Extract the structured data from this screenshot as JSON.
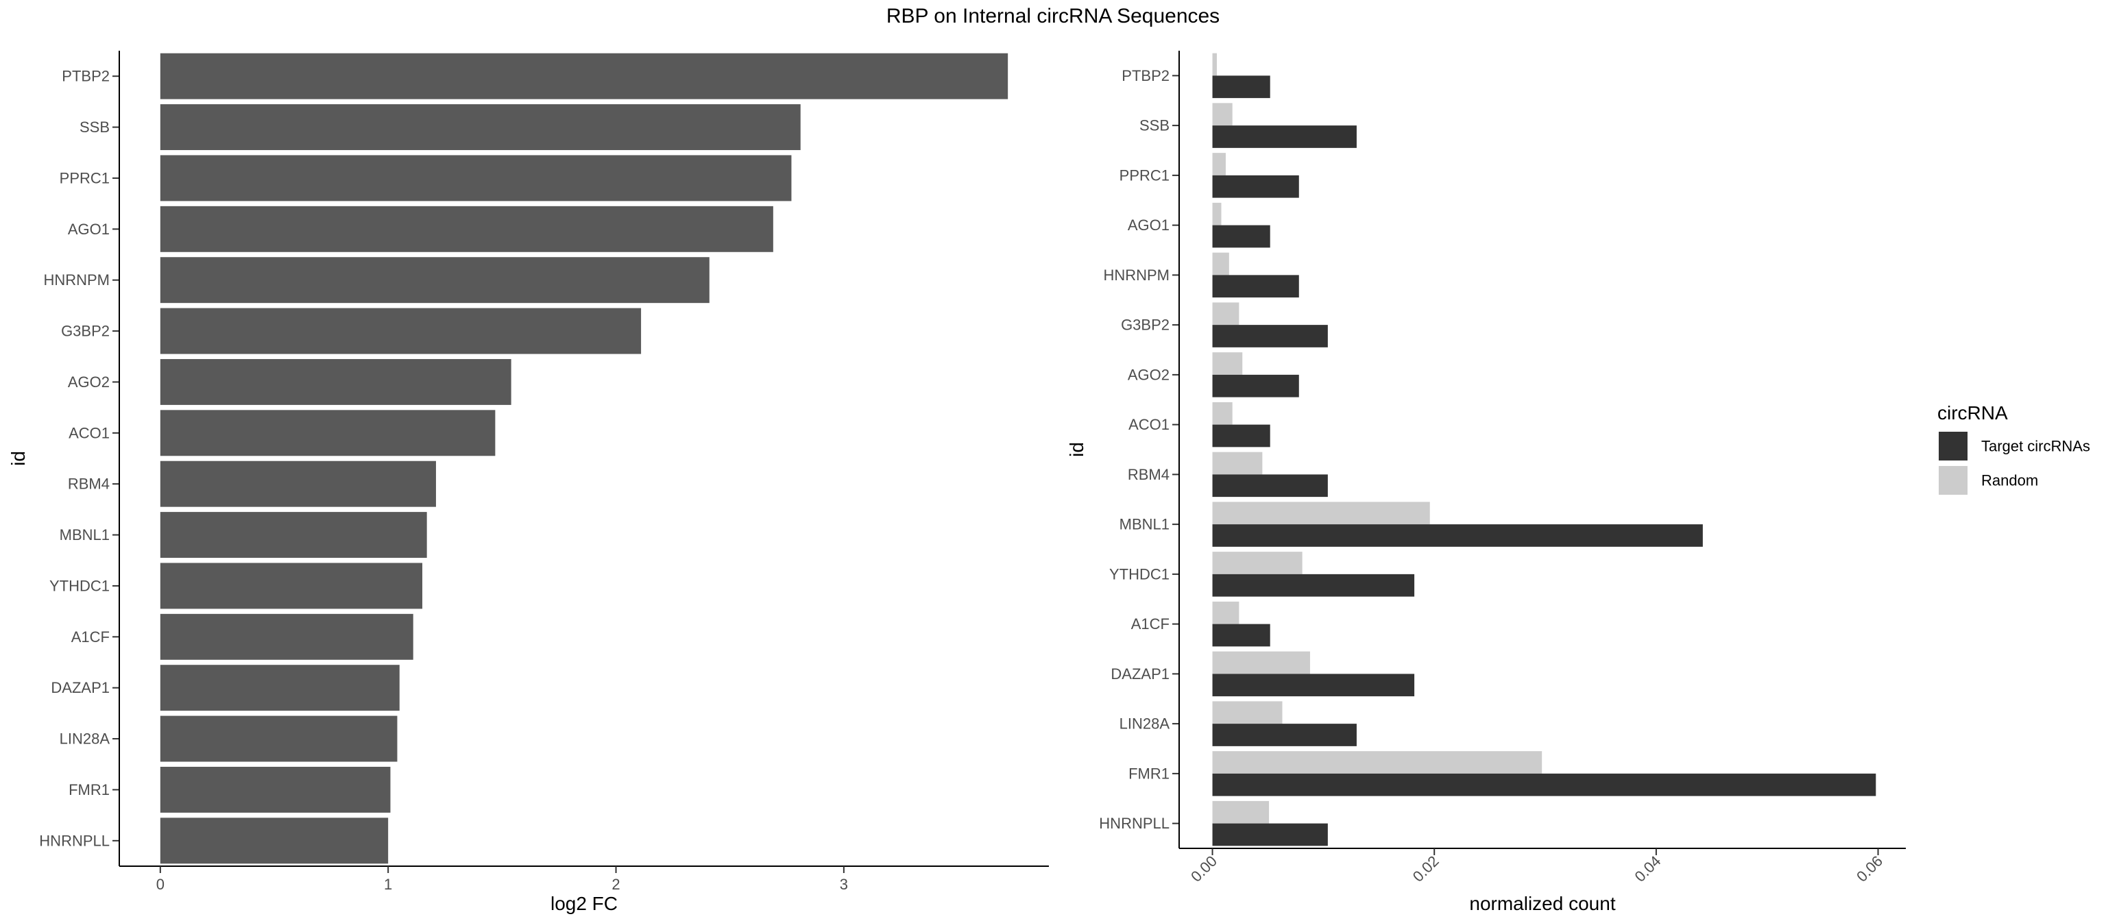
{
  "figure": {
    "title": "RBP on Internal circRNA Sequences"
  },
  "chart_data": [
    {
      "type": "bar",
      "orientation": "horizontal",
      "categories": [
        "PTBP2",
        "SSB",
        "PPRC1",
        "AGO1",
        "HNRNPM",
        "G3BP2",
        "AGO2",
        "ACO1",
        "RBM4",
        "MBNL1",
        "YTHDC1",
        "A1CF",
        "DAZAP1",
        "LIN28A",
        "FMR1",
        "HNRNPLL"
      ],
      "values": [
        3.72,
        2.81,
        2.77,
        2.69,
        2.41,
        2.11,
        1.54,
        1.47,
        1.21,
        1.17,
        1.15,
        1.11,
        1.05,
        1.04,
        1.01,
        1.0
      ],
      "xlabel": "log2 FC",
      "ylabel": "id",
      "xlim": [
        -0.18,
        3.9
      ],
      "xticks": [
        0,
        1,
        2,
        3
      ],
      "xtick_labels": [
        "0",
        "1",
        "2",
        "3"
      ],
      "grid": false,
      "color": "#595959"
    },
    {
      "type": "bar",
      "orientation": "horizontal",
      "grouped": true,
      "categories": [
        "PTBP2",
        "SSB",
        "PPRC1",
        "AGO1",
        "HNRNPM",
        "G3BP2",
        "AGO2",
        "ACO1",
        "RBM4",
        "MBNL1",
        "YTHDC1",
        "A1CF",
        "DAZAP1",
        "LIN28A",
        "FMR1",
        "HNRNPLL"
      ],
      "series": [
        {
          "name": "Target circRNAs",
          "color": "#333333",
          "values": [
            0.0052,
            0.013,
            0.0078,
            0.0052,
            0.0078,
            0.0104,
            0.0078,
            0.0052,
            0.0104,
            0.0442,
            0.0182,
            0.0052,
            0.0182,
            0.013,
            0.0598,
            0.0104
          ]
        },
        {
          "name": "Random",
          "color": "#cccccc",
          "values": [
            0.0004,
            0.0018,
            0.0012,
            0.0008,
            0.0015,
            0.0024,
            0.0027,
            0.0018,
            0.0045,
            0.0196,
            0.0081,
            0.0024,
            0.0088,
            0.0063,
            0.0297,
            0.0051
          ]
        }
      ],
      "xlabel": "normalized count",
      "ylabel": "id",
      "xlim": [
        -0.003,
        0.0625
      ],
      "xticks": [
        0,
        0.02,
        0.04,
        0.06
      ],
      "xtick_labels": [
        "0.00",
        "0.02",
        "0.04",
        "0.06"
      ],
      "grid": false,
      "legend": {
        "title": "circRNA",
        "position": "right",
        "entries": [
          "Target circRNAs",
          "Random"
        ]
      }
    }
  ]
}
